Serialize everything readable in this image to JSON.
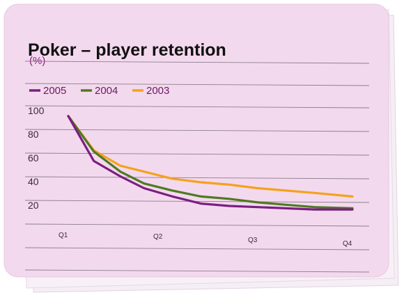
{
  "chart_data": {
    "type": "line",
    "title": "Poker – player retention",
    "unit": "(%)",
    "ylabel": "",
    "xlabel": "",
    "ylim": [
      0,
      100
    ],
    "yticks": [
      "100",
      "80",
      "60",
      "40",
      "20"
    ],
    "xticks": [
      "Q1",
      "Q2",
      "Q3",
      "Q4"
    ],
    "x": [
      0,
      0.27,
      0.55,
      0.8,
      1.1,
      1.4,
      1.7,
      2.0,
      2.3,
      2.6,
      3.0
    ],
    "series": [
      {
        "name": "2005",
        "color": "#7a1f80",
        "values": [
          96,
          58,
          45,
          35,
          28,
          22,
          20,
          19,
          18,
          17,
          17
        ]
      },
      {
        "name": "2004",
        "color": "#4e7a22",
        "values": [
          96,
          66,
          49,
          39,
          33,
          28,
          26,
          23,
          21,
          19,
          18
        ]
      },
      {
        "name": "2003",
        "color": "#f5a21b",
        "values": [
          96,
          67,
          54,
          49,
          43,
          40,
          38,
          35,
          33,
          31,
          28
        ]
      }
    ],
    "grid": true,
    "legend": "top-left",
    "background": "#f3d9ee"
  }
}
